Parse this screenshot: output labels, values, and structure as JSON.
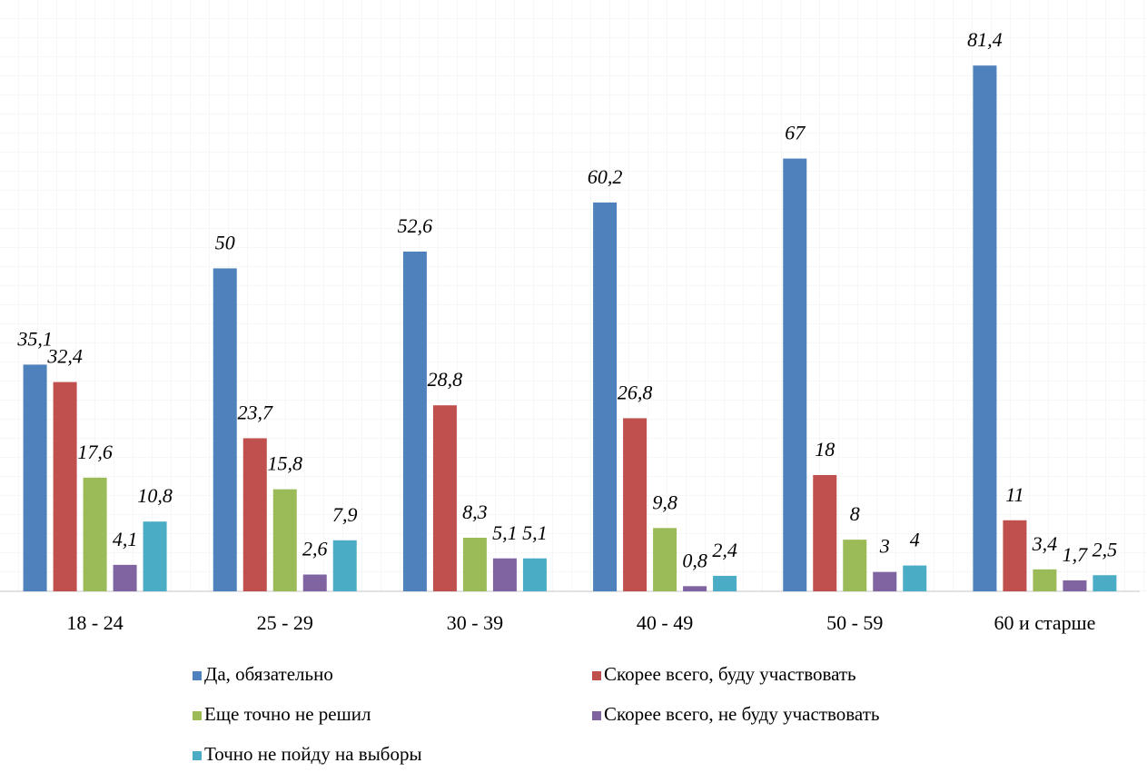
{
  "chart_data": {
    "type": "bar",
    "categories": [
      "18 - 24",
      "25 - 29",
      "30 - 39",
      "40 - 49",
      "50 - 59",
      "60 и старше"
    ],
    "series": [
      {
        "name": "Да, обязательно",
        "color": "#4f81bd",
        "values": [
          35.1,
          50,
          52.6,
          60.2,
          67,
          81.4
        ],
        "value_labels": [
          "35,1",
          "50",
          "52,6",
          "60,2",
          "67",
          "81,4"
        ]
      },
      {
        "name": "Скорее всего, буду участвовать",
        "color": "#c0504d",
        "values": [
          32.4,
          23.7,
          28.8,
          26.8,
          18,
          11
        ],
        "value_labels": [
          "32,4",
          "23,7",
          "28,8",
          "26,8",
          "18",
          "11"
        ]
      },
      {
        "name": "Еще точно не решил",
        "color": "#9bbb59",
        "values": [
          17.6,
          15.8,
          8.3,
          9.8,
          8,
          3.4
        ],
        "value_labels": [
          "17,6",
          "15,8",
          "8,3",
          "9,8",
          "8",
          "3,4"
        ]
      },
      {
        "name": "Скорее всего, не буду участвовать",
        "color": "#8064a2",
        "values": [
          4.1,
          2.6,
          5.1,
          0.8,
          3,
          1.7
        ],
        "value_labels": [
          "4,1",
          "2,6",
          "5,1",
          "0,8",
          "3",
          "1,7"
        ]
      },
      {
        "name": "Точно не пойду на выборы",
        "color": "#4bacc6",
        "values": [
          10.8,
          7.9,
          5.1,
          2.4,
          4,
          2.5
        ],
        "value_labels": [
          "10,8",
          "7,9",
          "5,1",
          "2,4",
          "4",
          "2,5"
        ]
      }
    ],
    "ylim": [
      0,
      90
    ],
    "legend": "bottom"
  }
}
